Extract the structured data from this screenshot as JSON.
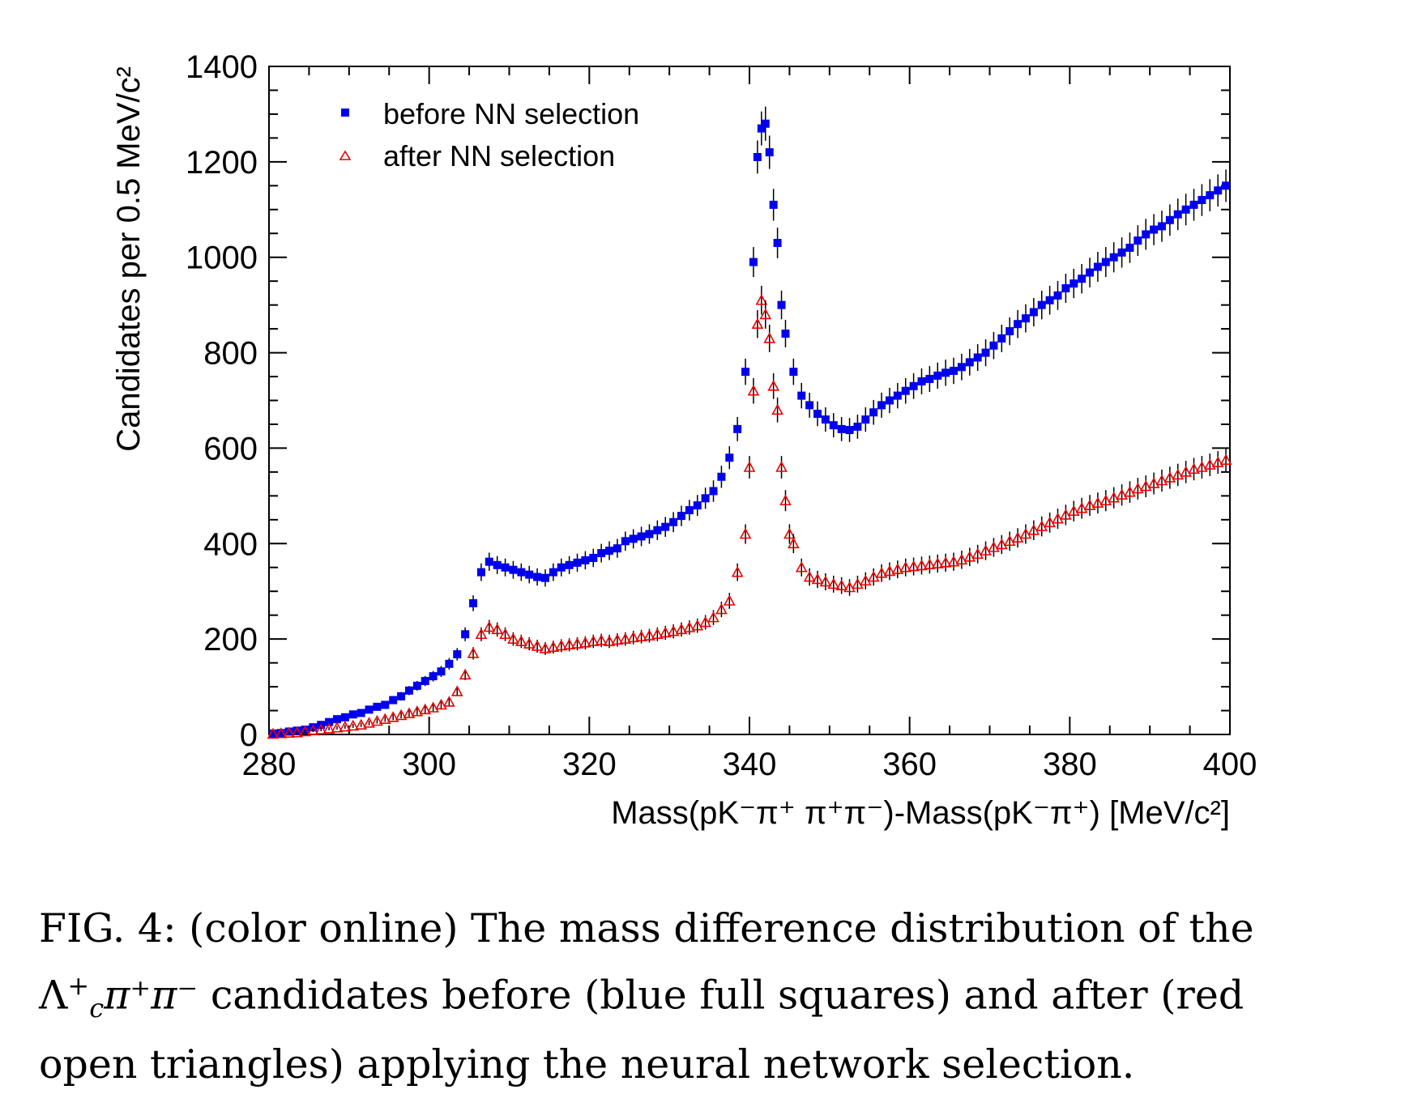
{
  "chart_data": {
    "type": "scatter",
    "xlabel": "Mass(pK⁻π⁺ π⁺π⁻)-Mass(pK⁻π⁺) [MeV/c²]",
    "ylabel": "Candidates per 0.5 MeV/c²",
    "xlim": [
      280,
      400
    ],
    "ylim": [
      0,
      1400
    ],
    "x_ticks": [
      280,
      300,
      320,
      340,
      360,
      380,
      400
    ],
    "y_ticks": [
      0,
      200,
      400,
      600,
      800,
      1000,
      1200,
      1400
    ],
    "legend_position": "top-left",
    "grid": false,
    "series": [
      {
        "name": "before NN selection",
        "marker": "full-square",
        "color": "#0000ee",
        "points": [
          [
            280.5,
            2
          ],
          [
            281.5,
            3
          ],
          [
            282.5,
            6
          ],
          [
            283.5,
            8
          ],
          [
            284.5,
            10
          ],
          [
            285.5,
            15
          ],
          [
            286.5,
            20
          ],
          [
            287.5,
            26
          ],
          [
            288.5,
            32
          ],
          [
            289.5,
            36
          ],
          [
            290.5,
            42
          ],
          [
            291.5,
            45
          ],
          [
            292.5,
            52
          ],
          [
            293.5,
            58
          ],
          [
            294.5,
            62
          ],
          [
            295.5,
            72
          ],
          [
            296.5,
            80
          ],
          [
            297.5,
            92
          ],
          [
            298.5,
            102
          ],
          [
            299.5,
            112
          ],
          [
            300.5,
            122
          ],
          [
            301.5,
            132
          ],
          [
            302.5,
            148
          ],
          [
            303.5,
            168
          ],
          [
            304.5,
            210
          ],
          [
            305.5,
            275
          ],
          [
            306.5,
            340
          ],
          [
            307.5,
            362
          ],
          [
            308.5,
            355
          ],
          [
            309.5,
            350
          ],
          [
            310.5,
            345
          ],
          [
            311.5,
            340
          ],
          [
            312.5,
            335
          ],
          [
            313.5,
            330
          ],
          [
            314.5,
            328
          ],
          [
            315.5,
            340
          ],
          [
            316.5,
            350
          ],
          [
            317.5,
            355
          ],
          [
            318.5,
            360
          ],
          [
            319.5,
            365
          ],
          [
            320.5,
            370
          ],
          [
            321.5,
            380
          ],
          [
            322.5,
            385
          ],
          [
            323.5,
            390
          ],
          [
            324.5,
            405
          ],
          [
            325.5,
            410
          ],
          [
            326.5,
            415
          ],
          [
            327.5,
            420
          ],
          [
            328.5,
            428
          ],
          [
            329.5,
            435
          ],
          [
            330.5,
            445
          ],
          [
            331.5,
            458
          ],
          [
            332.5,
            470
          ],
          [
            333.5,
            480
          ],
          [
            334.5,
            495
          ],
          [
            335.5,
            510
          ],
          [
            336.5,
            540
          ],
          [
            337.5,
            580
          ],
          [
            338.5,
            640
          ],
          [
            339.5,
            760
          ],
          [
            340.5,
            990
          ],
          [
            341.0,
            1210
          ],
          [
            341.5,
            1270
          ],
          [
            342.0,
            1280
          ],
          [
            342.5,
            1220
          ],
          [
            343.0,
            1110
          ],
          [
            343.5,
            1030
          ],
          [
            344.0,
            900
          ],
          [
            344.5,
            840
          ],
          [
            345.5,
            760
          ],
          [
            346.5,
            710
          ],
          [
            347.5,
            690
          ],
          [
            348.5,
            672
          ],
          [
            349.5,
            660
          ],
          [
            350.5,
            648
          ],
          [
            351.5,
            640
          ],
          [
            352.5,
            638
          ],
          [
            353.5,
            645
          ],
          [
            354.5,
            660
          ],
          [
            355.5,
            675
          ],
          [
            356.5,
            690
          ],
          [
            357.5,
            700
          ],
          [
            358.5,
            710
          ],
          [
            359.5,
            720
          ],
          [
            360.5,
            730
          ],
          [
            361.5,
            740
          ],
          [
            362.5,
            745
          ],
          [
            363.5,
            752
          ],
          [
            364.5,
            758
          ],
          [
            365.5,
            762
          ],
          [
            366.5,
            770
          ],
          [
            367.5,
            780
          ],
          [
            368.5,
            790
          ],
          [
            369.5,
            800
          ],
          [
            370.5,
            815
          ],
          [
            371.5,
            830
          ],
          [
            372.5,
            845
          ],
          [
            373.5,
            860
          ],
          [
            374.5,
            872
          ],
          [
            375.5,
            885
          ],
          [
            376.5,
            900
          ],
          [
            377.5,
            910
          ],
          [
            378.5,
            920
          ],
          [
            379.5,
            935
          ],
          [
            380.5,
            945
          ],
          [
            381.5,
            955
          ],
          [
            382.5,
            968
          ],
          [
            383.5,
            980
          ],
          [
            384.5,
            990
          ],
          [
            385.5,
            1000
          ],
          [
            386.5,
            1010
          ],
          [
            387.5,
            1020
          ],
          [
            388.5,
            1035
          ],
          [
            389.5,
            1048
          ],
          [
            390.5,
            1058
          ],
          [
            391.5,
            1065
          ],
          [
            392.5,
            1078
          ],
          [
            393.5,
            1090
          ],
          [
            394.5,
            1100
          ],
          [
            395.5,
            1110
          ],
          [
            396.5,
            1120
          ],
          [
            397.5,
            1130
          ],
          [
            398.5,
            1140
          ],
          [
            399.5,
            1150
          ]
        ]
      },
      {
        "name": "after NN selection",
        "marker": "open-triangle",
        "color": "#ee0000",
        "points": [
          [
            280.5,
            1
          ],
          [
            281.5,
            2
          ],
          [
            282.5,
            3
          ],
          [
            283.5,
            4
          ],
          [
            284.5,
            6
          ],
          [
            285.5,
            8
          ],
          [
            286.5,
            10
          ],
          [
            287.5,
            12
          ],
          [
            288.5,
            14
          ],
          [
            289.5,
            16
          ],
          [
            290.5,
            18
          ],
          [
            291.5,
            20
          ],
          [
            292.5,
            24
          ],
          [
            293.5,
            28
          ],
          [
            294.5,
            32
          ],
          [
            295.5,
            36
          ],
          [
            296.5,
            40
          ],
          [
            297.5,
            44
          ],
          [
            298.5,
            48
          ],
          [
            299.5,
            52
          ],
          [
            300.5,
            56
          ],
          [
            301.5,
            62
          ],
          [
            302.5,
            68
          ],
          [
            303.5,
            90
          ],
          [
            304.5,
            125
          ],
          [
            305.5,
            170
          ],
          [
            306.5,
            210
          ],
          [
            307.5,
            225
          ],
          [
            308.5,
            220
          ],
          [
            309.5,
            210
          ],
          [
            310.5,
            200
          ],
          [
            311.5,
            195
          ],
          [
            312.5,
            190
          ],
          [
            313.5,
            185
          ],
          [
            314.5,
            180
          ],
          [
            315.5,
            183
          ],
          [
            316.5,
            186
          ],
          [
            317.5,
            188
          ],
          [
            318.5,
            190
          ],
          [
            319.5,
            192
          ],
          [
            320.5,
            195
          ],
          [
            321.5,
            197
          ],
          [
            322.5,
            195
          ],
          [
            323.5,
            198
          ],
          [
            324.5,
            200
          ],
          [
            325.5,
            203
          ],
          [
            326.5,
            205
          ],
          [
            327.5,
            207
          ],
          [
            328.5,
            210
          ],
          [
            329.5,
            213
          ],
          [
            330.5,
            216
          ],
          [
            331.5,
            220
          ],
          [
            332.5,
            224
          ],
          [
            333.5,
            228
          ],
          [
            334.5,
            235
          ],
          [
            335.5,
            245
          ],
          [
            336.5,
            262
          ],
          [
            337.5,
            280
          ],
          [
            338.5,
            340
          ],
          [
            339.5,
            420
          ],
          [
            340.0,
            560
          ],
          [
            340.5,
            720
          ],
          [
            341.0,
            860
          ],
          [
            341.5,
            910
          ],
          [
            342.0,
            880
          ],
          [
            342.5,
            830
          ],
          [
            343.0,
            730
          ],
          [
            343.5,
            680
          ],
          [
            344.0,
            560
          ],
          [
            344.5,
            490
          ],
          [
            345.0,
            420
          ],
          [
            345.5,
            400
          ],
          [
            346.5,
            350
          ],
          [
            347.5,
            330
          ],
          [
            348.5,
            325
          ],
          [
            349.5,
            320
          ],
          [
            350.5,
            315
          ],
          [
            351.5,
            312
          ],
          [
            352.5,
            308
          ],
          [
            353.5,
            315
          ],
          [
            354.5,
            322
          ],
          [
            355.5,
            330
          ],
          [
            356.5,
            338
          ],
          [
            357.5,
            342
          ],
          [
            358.5,
            346
          ],
          [
            359.5,
            350
          ],
          [
            360.5,
            352
          ],
          [
            361.5,
            354
          ],
          [
            362.5,
            356
          ],
          [
            363.5,
            358
          ],
          [
            364.5,
            360
          ],
          [
            365.5,
            362
          ],
          [
            366.5,
            366
          ],
          [
            367.5,
            372
          ],
          [
            368.5,
            378
          ],
          [
            369.5,
            385
          ],
          [
            370.5,
            392
          ],
          [
            371.5,
            398
          ],
          [
            372.5,
            405
          ],
          [
            373.5,
            412
          ],
          [
            374.5,
            420
          ],
          [
            375.5,
            428
          ],
          [
            376.5,
            436
          ],
          [
            377.5,
            444
          ],
          [
            378.5,
            452
          ],
          [
            379.5,
            460
          ],
          [
            380.5,
            468
          ],
          [
            381.5,
            474
          ],
          [
            382.5,
            480
          ],
          [
            383.5,
            485
          ],
          [
            384.5,
            490
          ],
          [
            385.5,
            496
          ],
          [
            386.5,
            502
          ],
          [
            387.5,
            508
          ],
          [
            388.5,
            515
          ],
          [
            389.5,
            520
          ],
          [
            390.5,
            526
          ],
          [
            391.5,
            532
          ],
          [
            392.5,
            538
          ],
          [
            393.5,
            544
          ],
          [
            394.5,
            550
          ],
          [
            395.5,
            556
          ],
          [
            396.5,
            560
          ],
          [
            397.5,
            565
          ],
          [
            398.5,
            570
          ],
          [
            399.5,
            575
          ]
        ]
      }
    ]
  },
  "caption": {
    "line1": "FIG. 4: (color online) The mass difference distribution of the",
    "line2_symbol": "Λ",
    "line2_sub": "c",
    "line2_sup": "+",
    "line2_pions": "π⁺π⁻",
    "line2_rest": " candidates before (blue full squares) and after (red",
    "line3": "open triangles) applying the neural network selection."
  }
}
